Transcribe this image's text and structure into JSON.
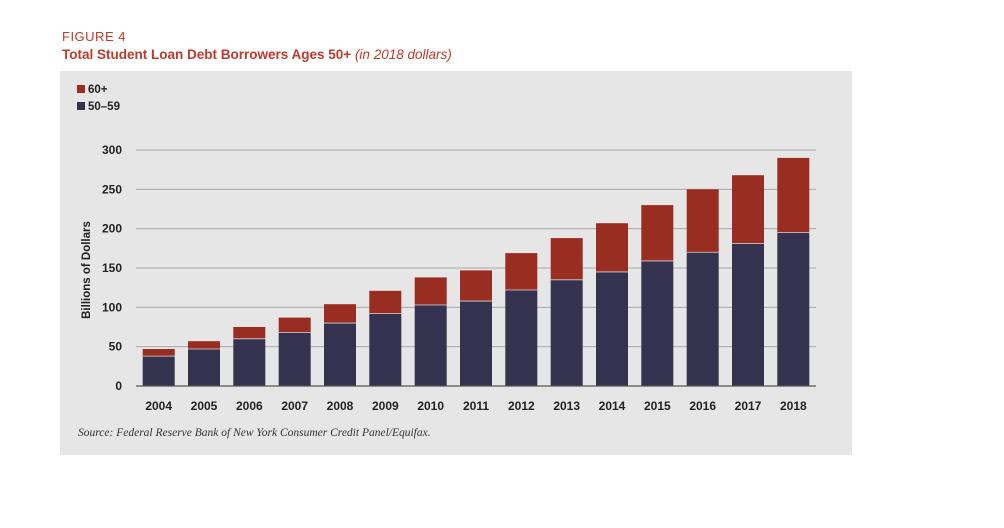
{
  "figure": {
    "label": "FIGURE 4",
    "title": "Total Student Loan Debt Borrowers Ages 50+",
    "subtitle": "(in 2018 dollars)",
    "source": "Source: Federal Reserve Bank of New York Consumer Credit Panel/Equifax."
  },
  "chart_data": {
    "type": "bar",
    "stacked": true,
    "categories": [
      "2004",
      "2005",
      "2006",
      "2007",
      "2008",
      "2009",
      "2010",
      "2011",
      "2012",
      "2013",
      "2014",
      "2015",
      "2016",
      "2017",
      "2018"
    ],
    "series": [
      {
        "name": "50–59",
        "color": "#35324f",
        "values": [
          38,
          47,
          60,
          68,
          80,
          92,
          103,
          108,
          122,
          135,
          145,
          159,
          170,
          181,
          195
        ]
      },
      {
        "name": "60+",
        "color": "#9a2d22",
        "values": [
          9,
          10,
          15,
          19,
          24,
          29,
          35,
          39,
          47,
          53,
          62,
          71,
          80,
          87,
          95
        ]
      }
    ],
    "ylabel": "Billions of Dollars",
    "xlabel": "",
    "ylim": [
      0,
      300
    ],
    "yticks": [
      0,
      50,
      100,
      150,
      200,
      250,
      300
    ],
    "grid": true,
    "legend": {
      "position": "top-left",
      "order": [
        "60+",
        "50–59"
      ]
    }
  }
}
